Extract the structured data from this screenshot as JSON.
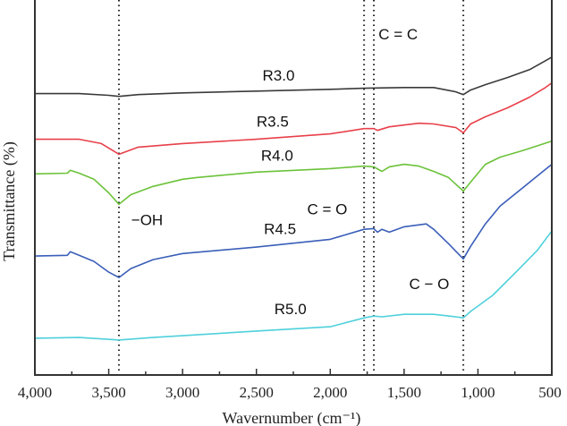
{
  "chart_data": {
    "type": "line",
    "title": "",
    "xlabel": "Wavernumber (cm⁻¹)",
    "ylabel": "Transmittance (%)",
    "xlim": [
      4000,
      500
    ],
    "ylim": [
      0,
      105
    ],
    "x_ticks": [
      4000,
      3500,
      3000,
      2500,
      2000,
      1500,
      1000,
      500
    ],
    "x_tick_labels": [
      "4,000",
      "3,500",
      "3,000",
      "2,500",
      "2,000",
      "1,500",
      "1,000",
      "500"
    ],
    "grid": false,
    "reference_lines": [
      3431,
      1771,
      1705,
      1099
    ],
    "annotations": [
      {
        "text": "−OH",
        "x": 3240,
        "y": 42
      },
      {
        "text": "C = O",
        "x": 2020,
        "y": 45
      },
      {
        "text": "C = C",
        "x": 1540,
        "y": 94
      },
      {
        "text": "C − O",
        "x": 1330,
        "y": 24
      }
    ],
    "series": [
      {
        "name": "R3.0",
        "color": "#3a3a3a",
        "label_at": [
          2350,
          82.5
        ],
        "points": [
          [
            4000,
            78.8
          ],
          [
            3700,
            78.8
          ],
          [
            3500,
            78.3
          ],
          [
            3431,
            78
          ],
          [
            3300,
            78.5
          ],
          [
            3000,
            79
          ],
          [
            2500,
            79.5
          ],
          [
            2000,
            80
          ],
          [
            1771,
            80.3
          ],
          [
            1500,
            80.5
          ],
          [
            1300,
            80.5
          ],
          [
            1150,
            79.3
          ],
          [
            1099,
            78.5
          ],
          [
            1050,
            79.8
          ],
          [
            950,
            81.3
          ],
          [
            800,
            83.3
          ],
          [
            650,
            85.5
          ],
          [
            550,
            87.8
          ],
          [
            500,
            89
          ]
        ]
      },
      {
        "name": "R3.5",
        "color": "#e8404a",
        "label_at": [
          2390,
          69.5
        ],
        "points": [
          [
            4000,
            66
          ],
          [
            3700,
            66
          ],
          [
            3550,
            64.8
          ],
          [
            3431,
            61.8
          ],
          [
            3300,
            63.8
          ],
          [
            3000,
            64.8
          ],
          [
            2500,
            66
          ],
          [
            2000,
            67.5
          ],
          [
            1771,
            69
          ],
          [
            1705,
            69
          ],
          [
            1680,
            68.5
          ],
          [
            1600,
            69.5
          ],
          [
            1400,
            70.5
          ],
          [
            1300,
            70.3
          ],
          [
            1150,
            69.3
          ],
          [
            1099,
            67.8
          ],
          [
            1050,
            70.3
          ],
          [
            950,
            72.3
          ],
          [
            800,
            74.8
          ],
          [
            650,
            77.8
          ],
          [
            550,
            80.3
          ],
          [
            500,
            81.8
          ]
        ]
      },
      {
        "name": "R4.0",
        "color": "#6cc23a",
        "label_at": [
          2360,
          60
        ],
        "points": [
          [
            4000,
            56.3
          ],
          [
            3780,
            56.5
          ],
          [
            3760,
            57.3
          ],
          [
            3700,
            56.5
          ],
          [
            3600,
            54.8
          ],
          [
            3500,
            51
          ],
          [
            3431,
            47.8
          ],
          [
            3350,
            50.5
          ],
          [
            3200,
            52.8
          ],
          [
            3000,
            54.8
          ],
          [
            2900,
            55.3
          ],
          [
            2500,
            56.8
          ],
          [
            2000,
            57.8
          ],
          [
            1771,
            58.5
          ],
          [
            1705,
            58.3
          ],
          [
            1650,
            57
          ],
          [
            1600,
            58.3
          ],
          [
            1500,
            59
          ],
          [
            1400,
            58.5
          ],
          [
            1300,
            57
          ],
          [
            1200,
            55.3
          ],
          [
            1099,
            51.5
          ],
          [
            1050,
            54
          ],
          [
            950,
            59
          ],
          [
            850,
            61
          ],
          [
            700,
            62.8
          ],
          [
            550,
            64.8
          ],
          [
            500,
            65.5
          ]
        ]
      },
      {
        "name": "R4.5",
        "color": "#3a5eb8",
        "label_at": [
          2340,
          39.5
        ],
        "points": [
          [
            4000,
            33.3
          ],
          [
            3780,
            33.5
          ],
          [
            3760,
            34.5
          ],
          [
            3700,
            33.5
          ],
          [
            3600,
            31.8
          ],
          [
            3500,
            28.8
          ],
          [
            3431,
            27.3
          ],
          [
            3350,
            29.8
          ],
          [
            3200,
            32.3
          ],
          [
            3000,
            34
          ],
          [
            2500,
            35.8
          ],
          [
            2000,
            38
          ],
          [
            1771,
            40.8
          ],
          [
            1705,
            41
          ],
          [
            1680,
            40
          ],
          [
            1650,
            40.8
          ],
          [
            1600,
            40
          ],
          [
            1500,
            41.5
          ],
          [
            1350,
            42.3
          ],
          [
            1300,
            40.8
          ],
          [
            1200,
            36.8
          ],
          [
            1099,
            32.5
          ],
          [
            1050,
            36
          ],
          [
            950,
            42.3
          ],
          [
            850,
            47.3
          ],
          [
            700,
            52.3
          ],
          [
            550,
            57.3
          ],
          [
            500,
            59
          ]
        ]
      },
      {
        "name": "R5.0",
        "color": "#4fd0dc",
        "label_at": [
          2270,
          17
        ],
        "points": [
          [
            4000,
            10.3
          ],
          [
            3700,
            10.5
          ],
          [
            3431,
            9.8
          ],
          [
            3200,
            10.5
          ],
          [
            3000,
            11
          ],
          [
            2500,
            12.3
          ],
          [
            2000,
            13.5
          ],
          [
            1771,
            16
          ],
          [
            1705,
            16.5
          ],
          [
            1650,
            16.3
          ],
          [
            1500,
            17
          ],
          [
            1300,
            17
          ],
          [
            1150,
            16.3
          ],
          [
            1099,
            16
          ],
          [
            1050,
            17.8
          ],
          [
            900,
            22.3
          ],
          [
            750,
            28.5
          ],
          [
            600,
            34.8
          ],
          [
            500,
            40.3
          ]
        ]
      }
    ]
  }
}
